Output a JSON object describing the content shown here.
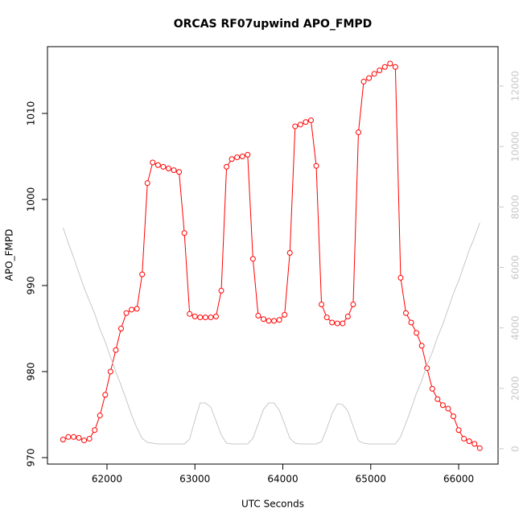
{
  "chart_data": {
    "type": "line",
    "title": "ORCAS RF07upwind APO_FMPD",
    "x_label": "UTC Seconds",
    "y_label": "APO_FMPD",
    "x": [
      61500,
      61560,
      61620,
      61680,
      61740,
      61800,
      61860,
      61920,
      61980,
      62040,
      62100,
      62160,
      62220,
      62280,
      62340,
      62400,
      62460,
      62520,
      62580,
      62640,
      62700,
      62760,
      62820,
      62880,
      62940,
      63000,
      63060,
      63120,
      63180,
      63240,
      63300,
      63360,
      63420,
      63480,
      63540,
      63600,
      63660,
      63720,
      63780,
      63840,
      63900,
      63960,
      64020,
      64080,
      64140,
      64200,
      64260,
      64320,
      64380,
      64440,
      64500,
      64560,
      64620,
      64680,
      64740,
      64800,
      64860,
      64920,
      64980,
      65040,
      65100,
      65160,
      65220,
      65280,
      65340,
      65400,
      65460,
      65520,
      65580,
      65640,
      65700,
      65760,
      65820,
      65880,
      65940,
      66000,
      66060,
      66120,
      66180,
      66240
    ],
    "series": [
      {
        "color": "#ff0000",
        "markers": true,
        "values": [
          972.1,
          972.4,
          972.4,
          972.3,
          972.0,
          972.2,
          973.2,
          974.9,
          977.3,
          980.0,
          982.5,
          985.0,
          986.8,
          987.2,
          987.3,
          991.3,
          1001.9,
          1004.3,
          1004.0,
          1003.8,
          1003.6,
          1003.4,
          1003.2,
          996.1,
          986.7,
          986.4,
          986.3,
          986.3,
          986.3,
          986.4,
          989.4,
          1003.8,
          1004.7,
          1004.9,
          1005.0,
          1005.2,
          993.1,
          986.5,
          986.1,
          985.9,
          985.9,
          986.0,
          986.6,
          993.8,
          1008.5,
          1008.7,
          1009.0,
          1009.2,
          1003.9,
          987.8,
          986.3,
          985.7,
          985.6,
          985.6,
          986.4,
          987.8,
          1007.8,
          1013.7,
          1014.1,
          1014.6,
          1015.0,
          1015.4,
          1015.8,
          1015.4,
          990.9,
          986.8,
          985.7,
          984.5,
          983.0,
          980.4,
          978.0,
          976.8,
          976.1,
          975.7,
          974.8,
          973.2,
          972.2,
          971.9,
          971.6,
          971.1
        ]
      },
      {
        "color": "#c8c8c8",
        "markers": false,
        "axis": "y2",
        "values": [
          7314,
          6809,
          6330,
          5824,
          5319,
          4894,
          4468,
          3963,
          3537,
          3032,
          2553,
          2101,
          1622,
          1117,
          691,
          346,
          213,
          186,
          160,
          160,
          160,
          160,
          160,
          160,
          319,
          957,
          1516,
          1516,
          1383,
          931,
          452,
          186,
          160,
          160,
          160,
          160,
          346,
          824,
          1303,
          1516,
          1516,
          1277,
          824,
          346,
          186,
          160,
          160,
          160,
          160,
          240,
          665,
          1170,
          1489,
          1463,
          1250,
          745,
          266,
          186,
          160,
          160,
          160,
          160,
          160,
          160,
          399,
          851,
          1330,
          1835,
          2261,
          2766,
          3191,
          3697,
          4122,
          4628,
          5133,
          5559,
          6064,
          6569,
          6995,
          7473
        ]
      }
    ],
    "xlim": [
      61323,
      66448
    ],
    "xticks": [
      62000,
      63000,
      64000,
      65000,
      66000
    ],
    "ylim": [
      969.25,
      1017.76
    ],
    "yticks": [
      970,
      980,
      990,
      1000,
      1010
    ],
    "y2lim": [
      -505,
      13303
    ],
    "y2ticks": [
      0,
      2000,
      4000,
      6000,
      8000,
      10000,
      12000
    ],
    "y2_color": "#c8c8c8"
  }
}
